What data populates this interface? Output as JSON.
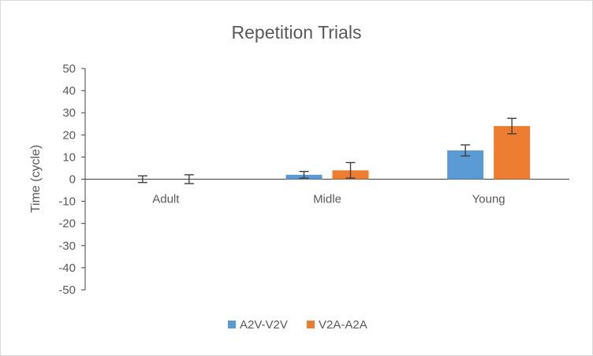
{
  "chart_data": {
    "type": "bar",
    "title": "Repetition Trials",
    "xlabel": "",
    "ylabel": "Time (cycle)",
    "ylim": [
      -50,
      50
    ],
    "yticks": [
      50,
      40,
      30,
      20,
      10,
      0,
      -10,
      -20,
      -30,
      -40,
      -50
    ],
    "categories": [
      "Adult",
      "Midle",
      "Young"
    ],
    "series": [
      {
        "name": "A2V-V2V",
        "color": "#5b9bd5",
        "values": [
          0,
          2,
          13
        ],
        "errors": [
          1.5,
          1.5,
          2.5
        ]
      },
      {
        "name": "V2A-A2A",
        "color": "#ed7d31",
        "values": [
          0,
          4,
          24
        ],
        "errors": [
          2,
          3.5,
          3.5
        ]
      }
    ],
    "legend_position": "bottom",
    "grid": false
  }
}
